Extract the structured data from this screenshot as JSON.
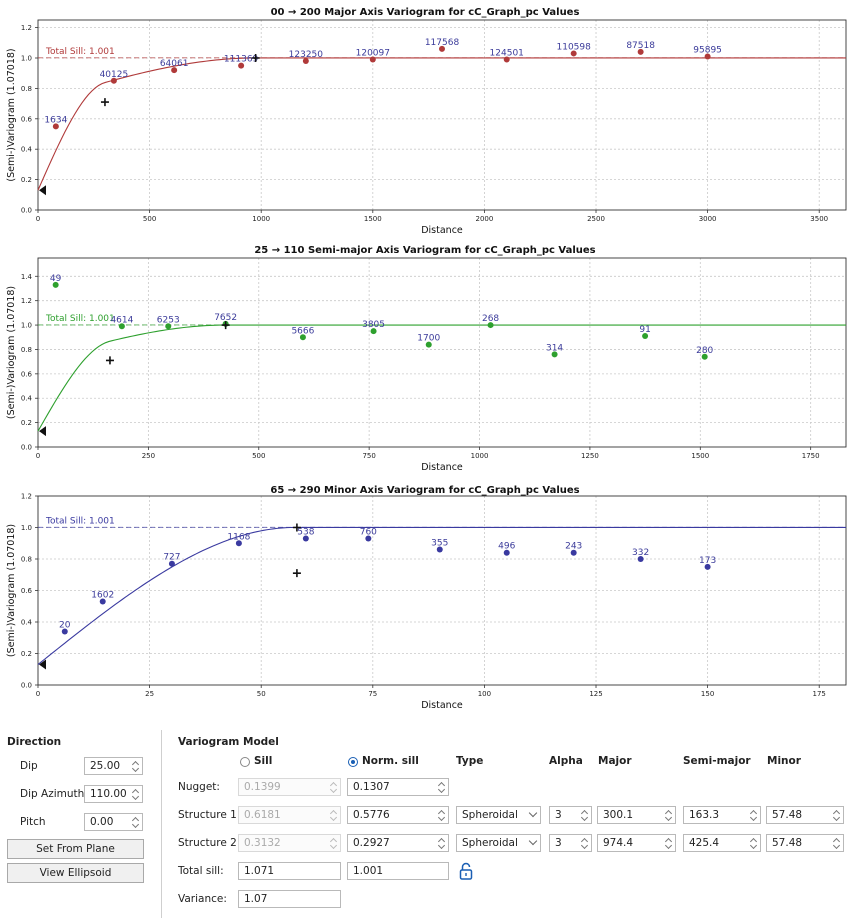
{
  "charts": [
    {
      "type": "scatter",
      "title": "00 → 200 Major Axis Variogram for cC_Graph_pc Values",
      "xlabel": "Distance",
      "ylabel": "(Semi-)Variogram (1.07018)",
      "xlim": [
        0,
        3620
      ],
      "ylim": [
        0,
        1.25
      ],
      "xticks": [
        0,
        500,
        1000,
        1500,
        2000,
        2500,
        3000,
        3500
      ],
      "yticks": [
        0.0,
        0.2,
        0.4,
        0.6,
        0.8,
        1.0,
        1.2
      ],
      "tick_labels_x": [
        "0",
        "500",
        "1000",
        "1500",
        "2000",
        "2500",
        "3000",
        "3500"
      ],
      "tick_labels_y": [
        "0.0",
        "0.2",
        "0.4",
        "0.6",
        "0.8",
        "1.0",
        "1.2"
      ],
      "color": "#b03a3a",
      "label_color": "#3b3b9a",
      "sill": 1.001,
      "sill_label": "Total Sill: 1.001",
      "nugget": 0.13,
      "structures": [
        {
          "range": 300.1,
          "sill": 0.5776
        },
        {
          "range": 974.4,
          "sill": 0.2927
        }
      ],
      "points": [
        {
          "x": 80,
          "y": 0.55,
          "label": "1634"
        },
        {
          "x": 340,
          "y": 0.85,
          "label": "40125"
        },
        {
          "x": 610,
          "y": 0.92,
          "label": "64061"
        },
        {
          "x": 910,
          "y": 0.95,
          "label": "111369"
        },
        {
          "x": 1200,
          "y": 0.98,
          "label": "123250"
        },
        {
          "x": 1500,
          "y": 0.99,
          "label": "120097"
        },
        {
          "x": 1810,
          "y": 1.06,
          "label": "117568"
        },
        {
          "x": 2100,
          "y": 0.99,
          "label": "124501"
        },
        {
          "x": 2400,
          "y": 1.03,
          "label": "110598"
        },
        {
          "x": 2700,
          "y": 1.04,
          "label": "87518"
        },
        {
          "x": 3000,
          "y": 1.01,
          "label": "95895"
        }
      ],
      "plus_markers": [
        {
          "x": 300,
          "y": 0.71
        },
        {
          "x": 975,
          "y": 1.0
        }
      ]
    },
    {
      "type": "scatter",
      "title": "25 → 110 Semi-major Axis Variogram for cC_Graph_pc Values",
      "xlabel": "Distance",
      "ylabel": "(Semi-)Variogram (1.07018)",
      "xlim": [
        0,
        1830
      ],
      "ylim": [
        0,
        1.55
      ],
      "xticks": [
        0,
        250,
        500,
        750,
        1000,
        1250,
        1500,
        1750
      ],
      "yticks": [
        0.0,
        0.2,
        0.4,
        0.6,
        0.8,
        1.0,
        1.2,
        1.4
      ],
      "tick_labels_x": [
        "0",
        "250",
        "500",
        "750",
        "1000",
        "1250",
        "1500",
        "1750"
      ],
      "tick_labels_y": [
        "0.0",
        "0.2",
        "0.4",
        "0.6",
        "0.8",
        "1.0",
        "1.2",
        "1.4"
      ],
      "color": "#2ea02e",
      "label_color": "#3b3b9a",
      "sill": 1.001,
      "sill_label": "Total Sill: 1.001",
      "nugget": 0.13,
      "structures": [
        {
          "range": 163.3,
          "sill": 0.5776
        },
        {
          "range": 425.4,
          "sill": 0.2927
        }
      ],
      "points": [
        {
          "x": 40,
          "y": 1.33,
          "label": "49"
        },
        {
          "x": 190,
          "y": 0.99,
          "label": "4614"
        },
        {
          "x": 295,
          "y": 0.99,
          "label": "6253"
        },
        {
          "x": 425,
          "y": 1.01,
          "label": "7652"
        },
        {
          "x": 600,
          "y": 0.9,
          "label": "5666"
        },
        {
          "x": 760,
          "y": 0.95,
          "label": "3805"
        },
        {
          "x": 885,
          "y": 0.84,
          "label": "1700"
        },
        {
          "x": 1025,
          "y": 1.0,
          "label": "268"
        },
        {
          "x": 1170,
          "y": 0.76,
          "label": "314"
        },
        {
          "x": 1375,
          "y": 0.91,
          "label": "91"
        },
        {
          "x": 1510,
          "y": 0.74,
          "label": "280"
        }
      ],
      "plus_markers": [
        {
          "x": 163,
          "y": 0.71
        },
        {
          "x": 425,
          "y": 1.0
        }
      ]
    },
    {
      "type": "scatter",
      "title": "65 → 290 Minor Axis Variogram for cC_Graph_pc Values",
      "xlabel": "Distance",
      "ylabel": "(Semi-)Variogram (1.07018)",
      "xlim": [
        0,
        181
      ],
      "ylim": [
        0,
        1.2
      ],
      "xticks": [
        0,
        25,
        50,
        75,
        100,
        125,
        150,
        175
      ],
      "yticks": [
        0.0,
        0.2,
        0.4,
        0.6,
        0.8,
        1.0,
        1.2
      ],
      "tick_labels_x": [
        "0",
        "25",
        "50",
        "75",
        "100",
        "125",
        "150",
        "175"
      ],
      "tick_labels_y": [
        "0.0",
        "0.2",
        "0.4",
        "0.6",
        "0.8",
        "1.0",
        "1.2"
      ],
      "color": "#3a3aa0",
      "label_color": "#3b3b9a",
      "sill": 1.001,
      "sill_label": "Total Sill: 1.001",
      "nugget": 0.13,
      "structures": [
        {
          "range": 57.48,
          "sill": 0.5776
        },
        {
          "range": 57.48,
          "sill": 0.2927
        }
      ],
      "points": [
        {
          "x": 6,
          "y": 0.34,
          "label": "20"
        },
        {
          "x": 14.5,
          "y": 0.53,
          "label": "1602"
        },
        {
          "x": 30,
          "y": 0.77,
          "label": "727"
        },
        {
          "x": 45,
          "y": 0.9,
          "label": "1168"
        },
        {
          "x": 60,
          "y": 0.93,
          "label": "538"
        },
        {
          "x": 74,
          "y": 0.93,
          "label": "760"
        },
        {
          "x": 90,
          "y": 0.86,
          "label": "355"
        },
        {
          "x": 105,
          "y": 0.84,
          "label": "496"
        },
        {
          "x": 120,
          "y": 0.84,
          "label": "243"
        },
        {
          "x": 135,
          "y": 0.8,
          "label": "332"
        },
        {
          "x": 150,
          "y": 0.75,
          "label": "173"
        }
      ],
      "plus_markers": [
        {
          "x": 58,
          "y": 0.71
        },
        {
          "x": 58,
          "y": 1.0
        }
      ]
    }
  ],
  "panel": {
    "direction": {
      "title": "Direction",
      "dip_label": "Dip",
      "dip": "25.00",
      "azimuth_label": "Dip Azimuth",
      "azimuth": "110.00",
      "pitch_label": "Pitch",
      "pitch": "0.00",
      "set_from_plane": "Set From Plane",
      "view_ellipsoid": "View Ellipsoid"
    },
    "model": {
      "title": "Variogram Model",
      "sill_label": "Sill",
      "norm_sill_label": "Norm. sill",
      "col_type": "Type",
      "col_alpha": "Alpha",
      "col_major": "Major",
      "col_semimajor": "Semi-major",
      "col_minor": "Minor",
      "nugget_label": "Nugget:",
      "nugget_sill": "0.1399",
      "nugget_norm": "0.1307",
      "s1_label": "Structure 1:",
      "s1_sill": "0.6181",
      "s1_norm": "0.5776",
      "s1_type": "Spheroidal",
      "s1_alpha": "3",
      "s1_major": "300.1",
      "s1_semimajor": "163.3",
      "s1_minor": "57.48",
      "s2_label": "Structure 2:",
      "s2_sill": "0.3132",
      "s2_norm": "0.2927",
      "s2_type": "Spheroidal",
      "s2_alpha": "3",
      "s2_major": "974.4",
      "s2_semimajor": "425.4",
      "s2_minor": "57.48",
      "total_label": "Total sill:",
      "total_sill": "1.071",
      "total_norm": "1.001",
      "variance_label": "Variance:",
      "variance": "1.07"
    }
  }
}
